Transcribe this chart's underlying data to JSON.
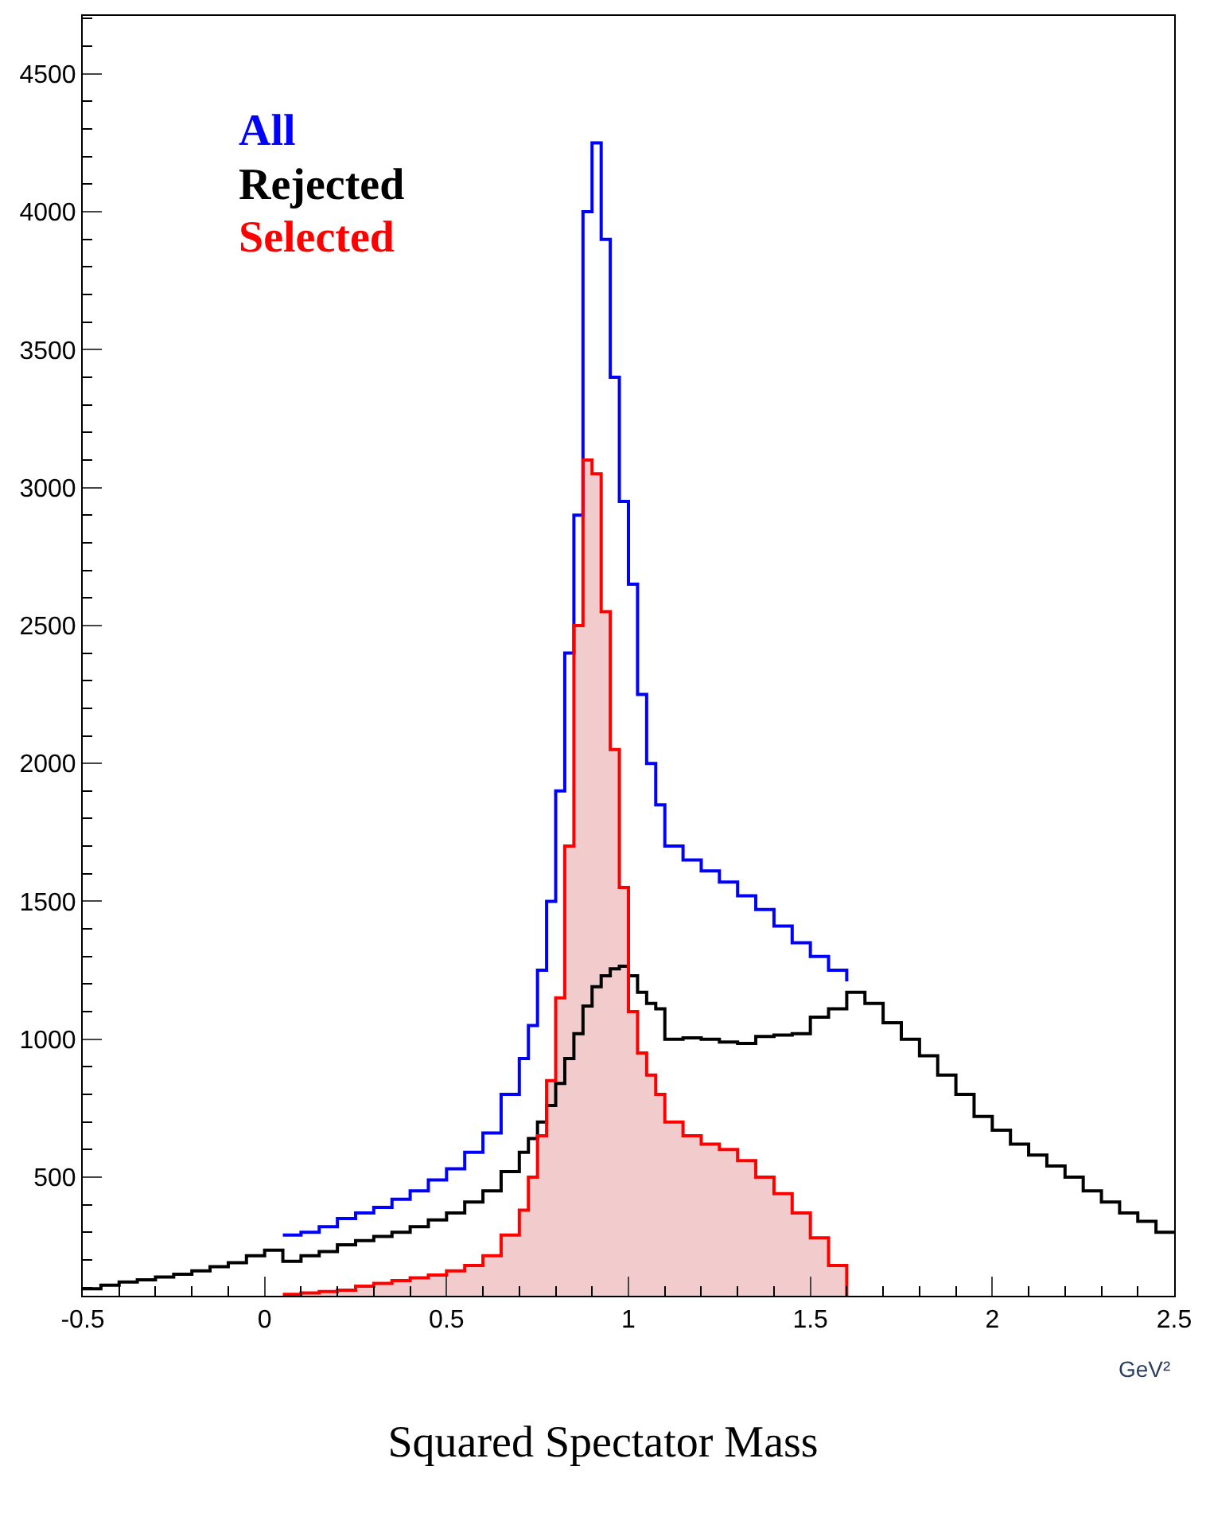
{
  "chart_data": {
    "type": "step",
    "title": "Squared Spectator Mass",
    "xlabel": "GeV²",
    "x": [
      -0.5,
      -0.45,
      -0.4,
      -0.35,
      -0.3,
      -0.25,
      -0.2,
      -0.15,
      -0.1,
      -0.05,
      0,
      0.05,
      0.1,
      0.15,
      0.2,
      0.25,
      0.3,
      0.35,
      0.4,
      0.45,
      0.5,
      0.55,
      0.6,
      0.65,
      0.7,
      0.725,
      0.75,
      0.775,
      0.8,
      0.825,
      0.85,
      0.875,
      0.9,
      0.925,
      0.95,
      0.975,
      1.0,
      1.025,
      1.05,
      1.075,
      1.1,
      1.15,
      1.2,
      1.25,
      1.3,
      1.35,
      1.4,
      1.45,
      1.5,
      1.55,
      1.6,
      1.65,
      1.7,
      1.75,
      1.8,
      1.85,
      1.9,
      1.95,
      2.0,
      2.05,
      2.1,
      2.15,
      2.2,
      2.25,
      2.3,
      2.35,
      2.4,
      2.45,
      2.5
    ],
    "series": [
      {
        "name": "All",
        "color": "#0000ff",
        "values": [
          null,
          null,
          null,
          null,
          null,
          null,
          null,
          null,
          null,
          null,
          null,
          290,
          300,
          320,
          350,
          370,
          390,
          420,
          450,
          490,
          530,
          590,
          660,
          800,
          930,
          1050,
          1250,
          1500,
          1900,
          2400,
          2900,
          4000,
          4250,
          3900,
          3400,
          2950,
          2650,
          2250,
          2000,
          1850,
          1700,
          1650,
          1610,
          1570,
          1520,
          1470,
          1410,
          1350,
          1300,
          1250,
          1210,
          null,
          null,
          null,
          null,
          null,
          null,
          null,
          null,
          null,
          null,
          null,
          null,
          null,
          null,
          null,
          null,
          null,
          null
        ]
      },
      {
        "name": "Rejected",
        "color": "#000000",
        "values": [
          95,
          108,
          120,
          128,
          138,
          148,
          160,
          175,
          190,
          215,
          235,
          195,
          215,
          230,
          255,
          270,
          285,
          300,
          320,
          345,
          370,
          410,
          450,
          520,
          590,
          640,
          700,
          760,
          840,
          930,
          1020,
          1120,
          1190,
          1230,
          1255,
          1265,
          1230,
          1170,
          1130,
          1110,
          1000,
          1005,
          1000,
          990,
          985,
          1010,
          1015,
          1020,
          1080,
          1110,
          1170,
          1130,
          1060,
          1000,
          940,
          870,
          800,
          720,
          670,
          620,
          580,
          540,
          500,
          450,
          410,
          370,
          340,
          300,
          300
        ]
      },
      {
        "color": "#f2cccc",
        "type": "area",
        "values": [
          null,
          null,
          null,
          null,
          null,
          null,
          null,
          null,
          null,
          null,
          null,
          75,
          80,
          85,
          90,
          105,
          115,
          125,
          135,
          145,
          160,
          180,
          215,
          290,
          380,
          500,
          650,
          850,
          1150,
          1700,
          2500,
          3100,
          3050,
          2550,
          2050,
          1550,
          1100,
          950,
          870,
          800,
          700,
          650,
          620,
          600,
          560,
          500,
          440,
          370,
          280,
          180,
          70,
          null,
          null,
          null,
          null,
          null,
          null,
          null,
          null,
          null,
          null,
          null,
          null,
          null,
          null,
          null,
          null,
          null,
          null
        ]
      },
      {
        "name": "Selected",
        "color": "#ff0000",
        "values": [
          null,
          null,
          null,
          null,
          null,
          null,
          null,
          null,
          null,
          null,
          null,
          75,
          80,
          85,
          90,
          105,
          115,
          125,
          135,
          145,
          160,
          180,
          215,
          290,
          380,
          500,
          650,
          850,
          1150,
          1700,
          2500,
          3100,
          3050,
          2550,
          2050,
          1550,
          1100,
          950,
          870,
          800,
          700,
          650,
          620,
          600,
          560,
          500,
          440,
          370,
          280,
          180,
          70,
          null,
          null,
          null,
          null,
          null,
          null,
          null,
          null,
          null,
          null,
          null,
          null,
          null,
          null,
          null,
          null,
          null,
          null
        ]
      }
    ],
    "xlim": [
      -0.5,
      2.5
    ],
    "xticks": [
      -0.5,
      0,
      0.5,
      1,
      1.5,
      2,
      2.5
    ],
    "ylim": [
      70,
      4710
    ],
    "yticks": [
      500,
      1000,
      1500,
      2000,
      2500,
      3000,
      3500,
      4000,
      4500
    ],
    "legend": "top left"
  }
}
